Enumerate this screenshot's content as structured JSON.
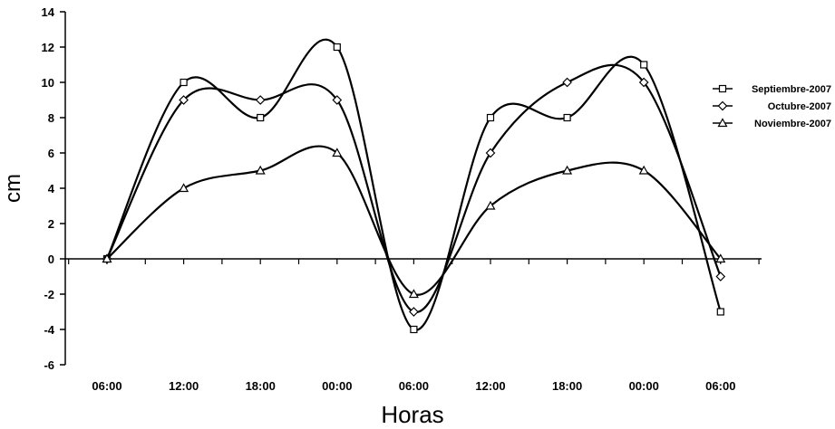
{
  "chart_data": {
    "type": "line",
    "xlabel": "Horas",
    "ylabel": "cm",
    "x_tick_labels": [
      "06:00",
      "12:00",
      "18:00",
      "00:00",
      "06:00",
      "12:00",
      "18:00",
      "00:00",
      "06:00"
    ],
    "x": [
      0,
      1,
      2,
      3,
      4,
      5,
      6,
      7,
      8
    ],
    "y_ticks": [
      -6,
      -4,
      -2,
      0,
      2,
      4,
      6,
      8,
      10,
      12,
      14
    ],
    "ylim": [
      -6,
      14
    ],
    "grid": false,
    "legend_position": "right",
    "series": [
      {
        "name": "Septiembre-2007",
        "marker": "square",
        "values": [
          0,
          10,
          8,
          12,
          -4,
          8,
          8,
          11,
          -3
        ]
      },
      {
        "name": "Octubre-2007",
        "marker": "diamond",
        "values": [
          0,
          9,
          9,
          9,
          -3,
          6,
          10,
          10,
          -1
        ]
      },
      {
        "name": "Noviembre-2007",
        "marker": "triangle",
        "values": [
          0,
          4,
          5,
          6,
          -2,
          3,
          5,
          5,
          0
        ]
      }
    ],
    "colors": {
      "line": "#000000",
      "marker_fill": "#ffffff"
    }
  }
}
